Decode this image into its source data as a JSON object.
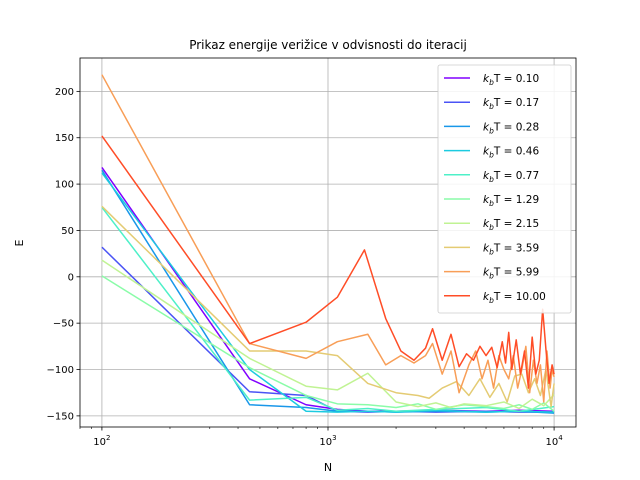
{
  "chart_data": {
    "type": "line",
    "title": "Prikaz energije verižice v odvisnosti do iteracij",
    "xlabel": "N",
    "ylabel": "E",
    "xscale": "log",
    "xlim": [
      80,
      12500
    ],
    "ylim": [
      -162,
      236
    ],
    "xticks": [
      {
        "value": 100,
        "base": "10",
        "exp": "2"
      },
      {
        "value": 1000,
        "base": "10",
        "exp": "3"
      },
      {
        "value": 10000,
        "base": "10",
        "exp": "4"
      }
    ],
    "yticks": [
      200,
      150,
      100,
      50,
      0,
      -50,
      -100,
      -150
    ],
    "grid": true,
    "legend_position": "top-right",
    "series": [
      {
        "name": "kbT = 0.10",
        "kb": "k",
        "sub": "b",
        "rest": "T = 0.10",
        "color": "#8000ff",
        "x": [
          100,
          450,
          800,
          1100,
          1500,
          2000,
          3000,
          5000,
          7000,
          10000
        ],
        "y": [
          118,
          -110,
          -138,
          -143,
          -145,
          -145,
          -144,
          -145,
          -144,
          -145
        ]
      },
      {
        "name": "kbT = 0.17",
        "kb": "k",
        "sub": "b",
        "rest": "T = 0.17",
        "color": "#4a53f5",
        "x": [
          100,
          450,
          800,
          1100,
          1500,
          2000,
          3000,
          5000,
          7000,
          10000
        ],
        "y": [
          32,
          -124,
          -128,
          -145,
          -146,
          -145,
          -146,
          -145,
          -146,
          -146
        ]
      },
      {
        "name": "kbT = 0.28",
        "kb": "k",
        "sub": "b",
        "rest": "T = 0.28",
        "color": "#1997e9",
        "x": [
          100,
          450,
          800,
          1100,
          1500,
          2000,
          3000,
          5000,
          7000,
          10000
        ],
        "y": [
          115,
          -138,
          -141,
          -145,
          -145,
          -146,
          -145,
          -146,
          -145,
          -147
        ]
      },
      {
        "name": "kbT = 0.46",
        "kb": "k",
        "sub": "b",
        "rest": "T = 0.46",
        "color": "#1ccbe0",
        "x": [
          100,
          450,
          800,
          1100,
          1500,
          2000,
          3000,
          5000,
          7000,
          10000
        ],
        "y": [
          112,
          -100,
          -145,
          -146,
          -145,
          -146,
          -144,
          -146,
          -145,
          -146
        ]
      },
      {
        "name": "kbT = 0.77",
        "kb": "k",
        "sub": "b",
        "rest": "T = 0.77",
        "color": "#4ef0c8",
        "x": [
          100,
          450,
          800,
          1100,
          1500,
          2000,
          3000,
          5000,
          7000,
          10000
        ],
        "y": [
          75,
          -133,
          -130,
          -144,
          -142,
          -145,
          -143,
          -141,
          -145,
          -140
        ]
      },
      {
        "name": "kbT = 1.29",
        "kb": "k",
        "sub": "b",
        "rest": "T = 1.29",
        "color": "#8afca8",
        "x": [
          100,
          450,
          800,
          1100,
          1500,
          2000,
          2500,
          3000,
          4000,
          5000,
          6000,
          7000,
          8000,
          9000,
          10000
        ],
        "y": [
          1,
          -98,
          -128,
          -137,
          -138,
          -141,
          -137,
          -143,
          -138,
          -140,
          -142,
          -138,
          -143,
          -136,
          -145
        ]
      },
      {
        "name": "kbT = 2.15",
        "kb": "k",
        "sub": "b",
        "rest": "T = 2.15",
        "color": "#c0f393",
        "x": [
          100,
          450,
          800,
          1100,
          1500,
          2000,
          2500,
          3000,
          3500,
          4000,
          5000,
          6000,
          7000,
          8000,
          9000,
          10000
        ],
        "y": [
          18,
          -88,
          -118,
          -122,
          -104,
          -135,
          -140,
          -136,
          -141,
          -137,
          -139,
          -135,
          -142,
          -132,
          -139,
          -127
        ]
      },
      {
        "name": "kbT = 3.59",
        "kb": "k",
        "sub": "b",
        "rest": "T = 3.59",
        "color": "#e4cb73",
        "x": [
          100,
          450,
          800,
          1100,
          1500,
          2000,
          2500,
          2800,
          3200,
          3700,
          4200,
          4700,
          5200,
          5700,
          6200,
          6700,
          7200,
          7700,
          8200,
          8700,
          9200,
          9700,
          10000
        ],
        "y": [
          76,
          -80,
          -80,
          -85,
          -115,
          -125,
          -128,
          -131,
          -120,
          -113,
          -128,
          -110,
          -130,
          -115,
          -135,
          -107,
          -105,
          -125,
          -110,
          -128,
          -100,
          -140,
          -115
        ]
      },
      {
        "name": "kbT = 5.99",
        "kb": "k",
        "sub": "b",
        "rest": "T = 5.99",
        "color": "#f89e57",
        "x": [
          100,
          450,
          800,
          1100,
          1500,
          1800,
          2100,
          2400,
          2700,
          2900,
          3200,
          3500,
          3800,
          4200,
          4500,
          4800,
          5100,
          5400,
          5700,
          6000,
          6300,
          6600,
          6900,
          7200,
          7500,
          7800,
          8100,
          8400,
          8700,
          9000,
          9300,
          9600,
          9800,
          10000
        ],
        "y": [
          218,
          -72,
          -88,
          -70,
          -62,
          -95,
          -85,
          -93,
          -85,
          -72,
          -105,
          -80,
          -125,
          -95,
          -80,
          -110,
          -90,
          -120,
          -85,
          -100,
          -110,
          -85,
          -120,
          -100,
          -75,
          -125,
          -90,
          -115,
          -95,
          -135,
          -80,
          -120,
          -100,
          -108
        ]
      },
      {
        "name": "kbT = 10.00",
        "kb": "k",
        "sub": "b",
        "rest": "T = 10.00",
        "color": "#ff4d27",
        "x": [
          100,
          450,
          800,
          1100,
          1450,
          1800,
          2100,
          2400,
          2700,
          2900,
          3200,
          3500,
          3800,
          4100,
          4400,
          4700,
          5000,
          5300,
          5600,
          5900,
          6100,
          6300,
          6500,
          6800,
          7100,
          7400,
          7700,
          8000,
          8300,
          8600,
          8900,
          9200,
          9500,
          9800,
          10000
        ],
        "y": [
          152,
          -72,
          -49,
          -22,
          29,
          -45,
          -80,
          -90,
          -77,
          -56,
          -90,
          -62,
          -97,
          -83,
          -90,
          -75,
          -85,
          -76,
          -98,
          -70,
          -93,
          -60,
          -100,
          -68,
          -105,
          -80,
          -120,
          -65,
          -105,
          -90,
          -35,
          -78,
          -115,
          -95,
          -105
        ]
      }
    ]
  }
}
